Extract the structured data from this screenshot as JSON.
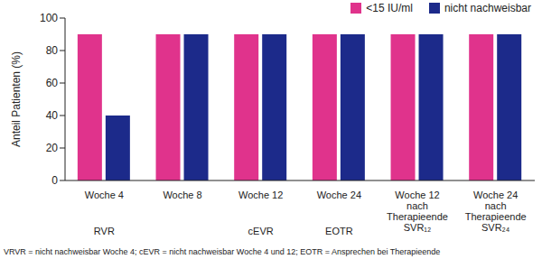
{
  "chart_data": {
    "type": "bar",
    "categories": [
      "Woche 4",
      "Woche 8",
      "Woche 12",
      "Woche 24",
      "Woche 12 nach Therapieende SVR₁₂",
      "Woche 24 nach Therapieende SVR₂₄"
    ],
    "phase_labels": [
      "RVR",
      null,
      "cEVR",
      "EOTR",
      null,
      null
    ],
    "series": [
      {
        "name": "<15 IU/ml",
        "color": "#e0338c",
        "values": [
          90,
          90,
          90,
          90,
          90,
          90
        ]
      },
      {
        "name": "nicht nachweisbar",
        "color": "#1c2a8a",
        "values": [
          40,
          90,
          90,
          90,
          90,
          90
        ]
      }
    ],
    "y_label": "Anteil Patienten (%)",
    "ylim": [
      0,
      100
    ],
    "yticks": [
      0,
      20,
      40,
      60,
      80,
      100
    ],
    "grid": false,
    "legend": "top-right",
    "footnote": "VRVR = nicht nachweisbar Woche 4; cEVR = nicht nachweisbar Woche 4 und 12; EOTR = Ansprechen bei Therapieende"
  }
}
